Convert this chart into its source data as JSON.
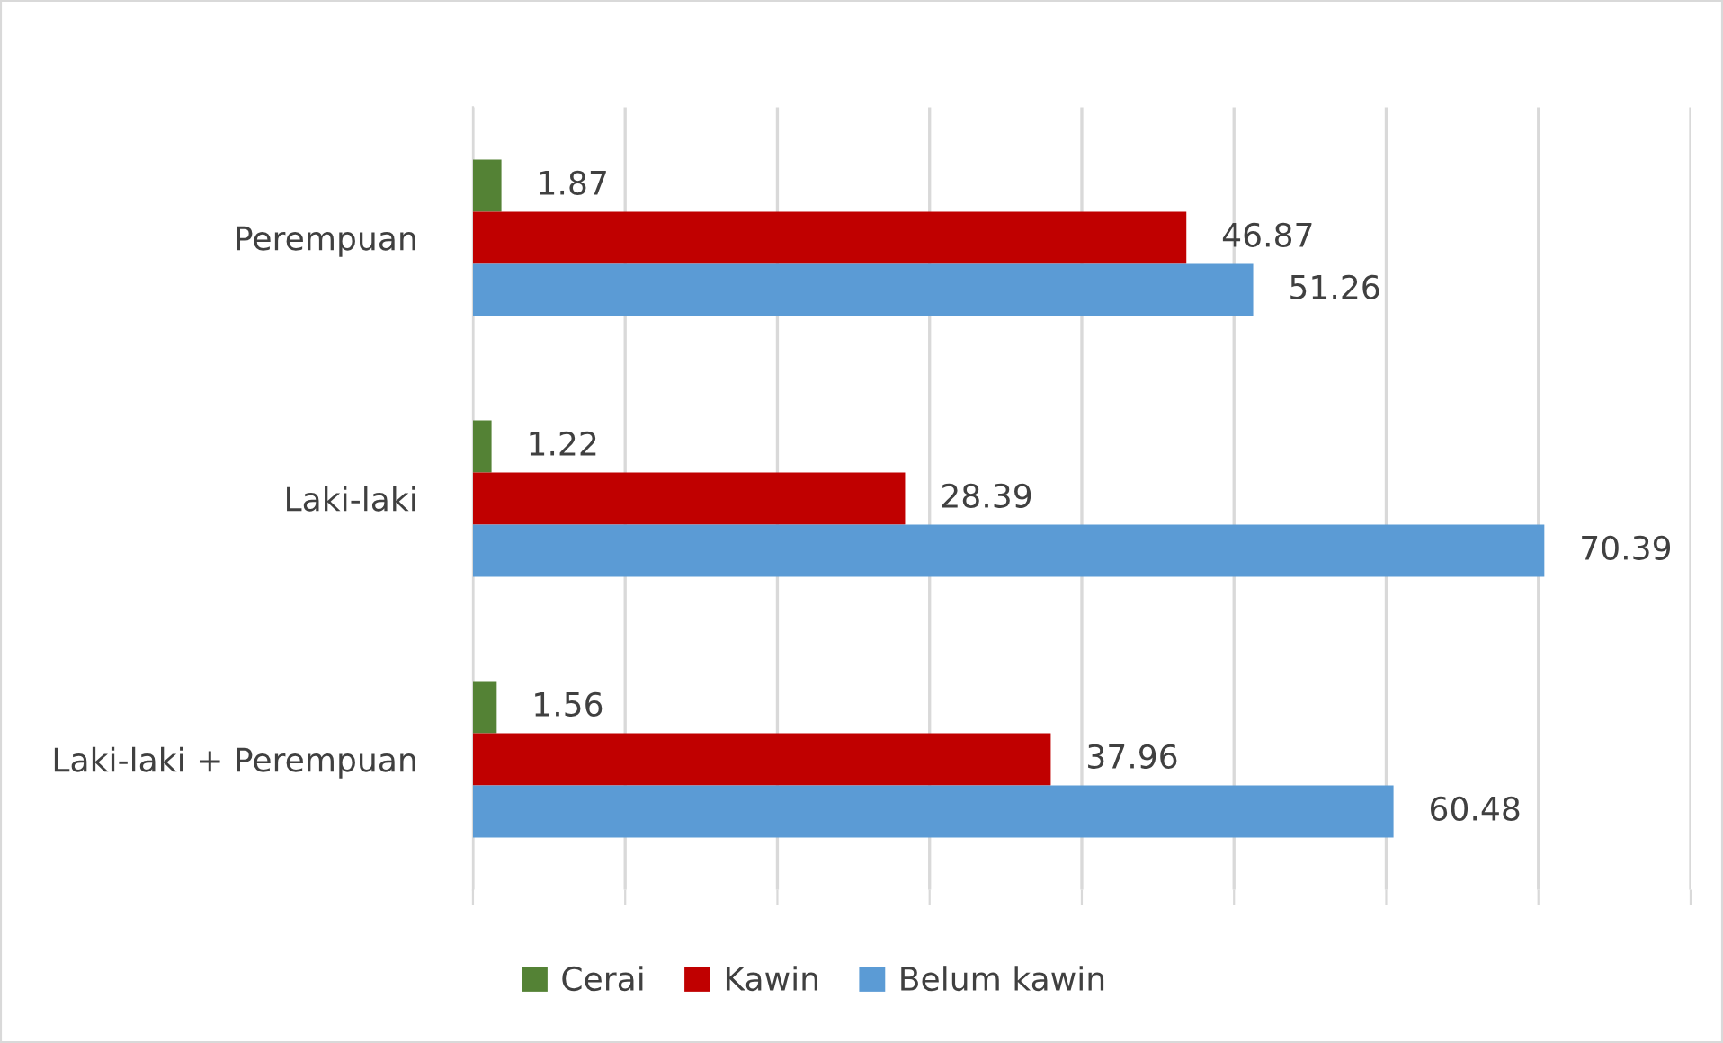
{
  "chart_data": {
    "type": "bar",
    "orientation": "horizontal",
    "categories": [
      "Perempuan",
      "Laki-laki",
      "Laki-laki + Perempuan"
    ],
    "series": [
      {
        "name": "Cerai",
        "color": "#548235",
        "values": [
          1.87,
          1.22,
          1.56
        ]
      },
      {
        "name": "Kawin",
        "color": "#c00000",
        "values": [
          46.87,
          28.39,
          37.96
        ]
      },
      {
        "name": "Belum kawin",
        "color": "#5b9bd5",
        "values": [
          51.26,
          70.39,
          60.48
        ]
      }
    ],
    "xlim": [
      0,
      80
    ],
    "xticks": [
      {
        "value": 0,
        "label": null
      },
      {
        "value": 10,
        "label": null
      },
      {
        "value": 20,
        "label": null
      },
      {
        "value": 30,
        "label": null
      },
      {
        "value": 40,
        "label": null
      },
      {
        "value": 50,
        "label": null
      },
      {
        "value": 60,
        "label": null
      },
      {
        "value": 70,
        "label": null
      },
      {
        "value": 80,
        "label": null
      }
    ],
    "tick_labels": "y",
    "grid": "x",
    "legend": "bottom",
    "data_labels": true
  }
}
